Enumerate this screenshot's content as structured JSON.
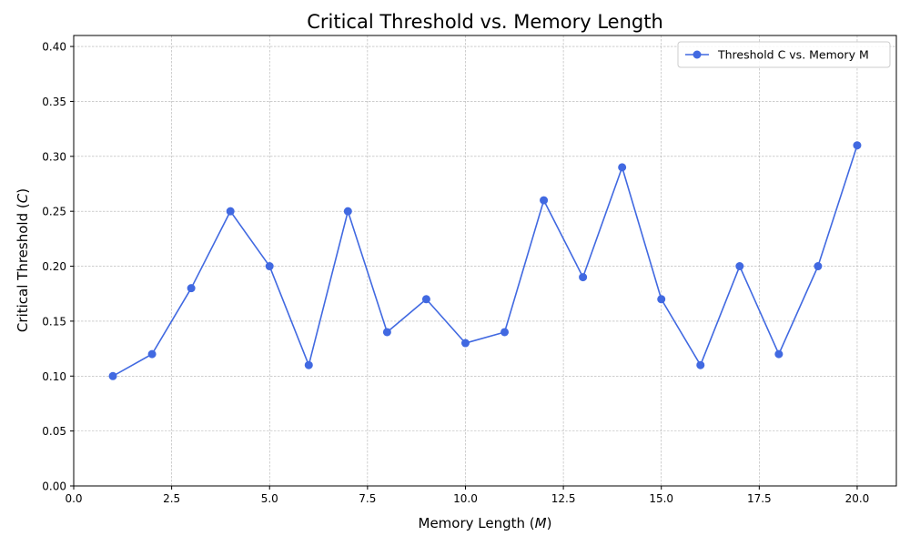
{
  "chart_data": {
    "type": "line",
    "title": "Critical Threshold vs. Memory Length",
    "xlabel_text": "Memory Length (",
    "xlabel_var": "M",
    "xlabel_close": ")",
    "ylabel_text": "Critical Threshold (",
    "ylabel_var": "C",
    "ylabel_close": ")",
    "xlim": [
      0,
      21
    ],
    "ylim": [
      0,
      0.41
    ],
    "xticks": [
      0,
      2.5,
      5,
      7.5,
      10,
      12.5,
      15,
      17.5,
      20
    ],
    "xtick_labels": [
      "0.0",
      "2.5",
      "5.0",
      "7.5",
      "10.0",
      "12.5",
      "15.0",
      "17.5",
      "20.0"
    ],
    "yticks": [
      0,
      0.05,
      0.1,
      0.15,
      0.2,
      0.25,
      0.3,
      0.35,
      0.4
    ],
    "ytick_labels": [
      "0.00",
      "0.05",
      "0.10",
      "0.15",
      "0.20",
      "0.25",
      "0.30",
      "0.35",
      "0.40"
    ],
    "grid": true,
    "legend_position": "top-right",
    "series": [
      {
        "name": "Threshold C vs. Memory M",
        "color": "#4169e1",
        "marker": "circle",
        "x": [
          1,
          2,
          3,
          4,
          5,
          6,
          7,
          8,
          9,
          10,
          11,
          12,
          13,
          14,
          15,
          16,
          17,
          18,
          19,
          20
        ],
        "y": [
          0.1,
          0.12,
          0.18,
          0.25,
          0.2,
          0.11,
          0.25,
          0.14,
          0.17,
          0.13,
          0.14,
          0.26,
          0.19,
          0.29,
          0.17,
          0.11,
          0.2,
          0.12,
          0.2,
          0.31
        ]
      }
    ]
  }
}
